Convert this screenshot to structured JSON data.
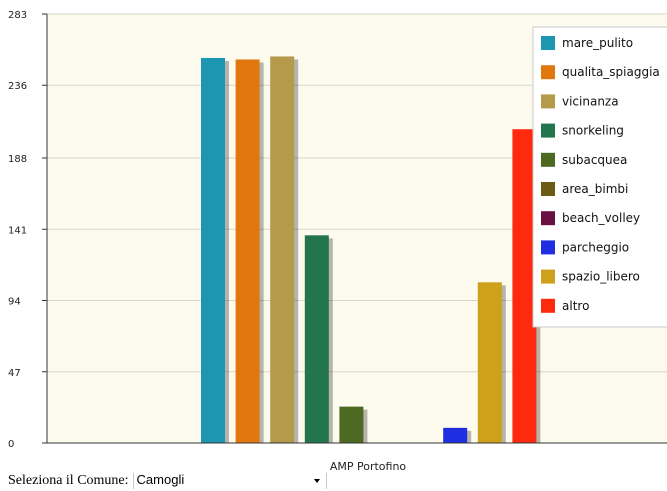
{
  "chart_data": {
    "type": "bar",
    "categories": [
      "AMP Portofino"
    ],
    "series": [
      {
        "name": "mare_pulito",
        "values": [
          254
        ],
        "color": "#1d96b1"
      },
      {
        "name": "qualita_spiaggia",
        "values": [
          253
        ],
        "color": "#e0780f"
      },
      {
        "name": "vicinanza",
        "values": [
          255
        ],
        "color": "#b59a4c"
      },
      {
        "name": "snorkeling",
        "values": [
          137
        ],
        "color": "#22754d"
      },
      {
        "name": "subacquea",
        "values": [
          24
        ],
        "color": "#4e6922"
      },
      {
        "name": "area_bimbi",
        "values": [
          0
        ],
        "color": "#6b5b13"
      },
      {
        "name": "beach_volley",
        "values": [
          0
        ],
        "color": "#6a1043"
      },
      {
        "name": "parcheggio",
        "values": [
          10
        ],
        "color": "#1f2ee0"
      },
      {
        "name": "spazio_libero",
        "values": [
          106
        ],
        "color": "#cfa01c"
      },
      {
        "name": "altro",
        "values": [
          207
        ],
        "color": "#ff2a0e"
      }
    ],
    "yticks": [
      0,
      47,
      94,
      141,
      188,
      236,
      283
    ],
    "ylim": [
      0,
      283
    ],
    "grid": true,
    "legend": "top-right",
    "background": "#fdfbee"
  },
  "selector": {
    "label": "Seleziona il Comune:",
    "value": "Camogli"
  }
}
